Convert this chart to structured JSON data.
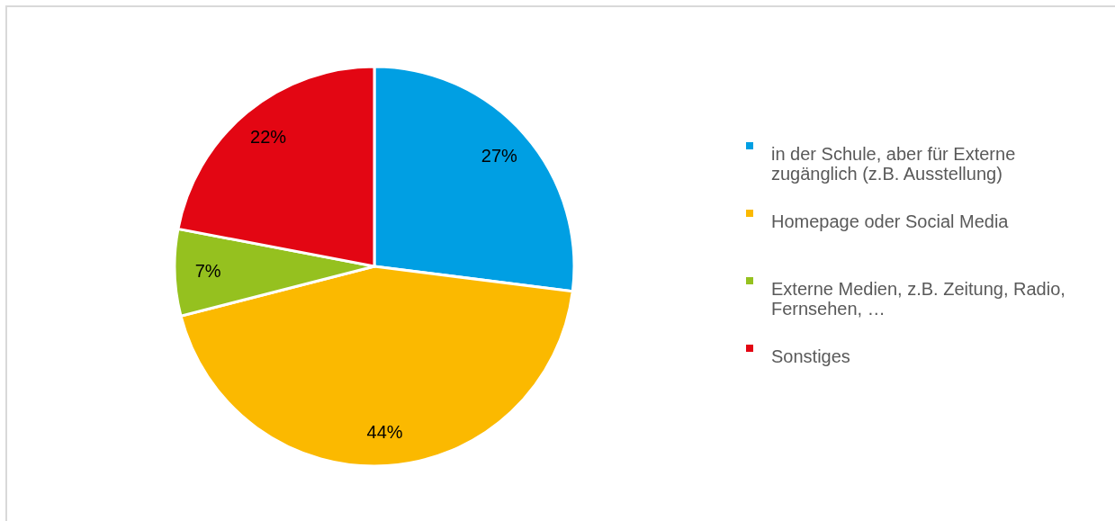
{
  "chart_data": {
    "type": "pie",
    "categories": [
      "in der Schule, aber für Externe zugänglich (z.B. Ausstellung)",
      "Homepage oder Social Media",
      "Externe Medien, z.B. Zeitung, Radio, Fernsehen, …",
      "Sonstiges"
    ],
    "values": [
      27,
      44,
      7,
      22
    ],
    "colors": [
      "#009fe3",
      "#fbb900",
      "#95c11f",
      "#e30613"
    ],
    "value_labels": [
      "27%",
      "44%",
      "7%",
      "22%"
    ],
    "legend": "right"
  }
}
